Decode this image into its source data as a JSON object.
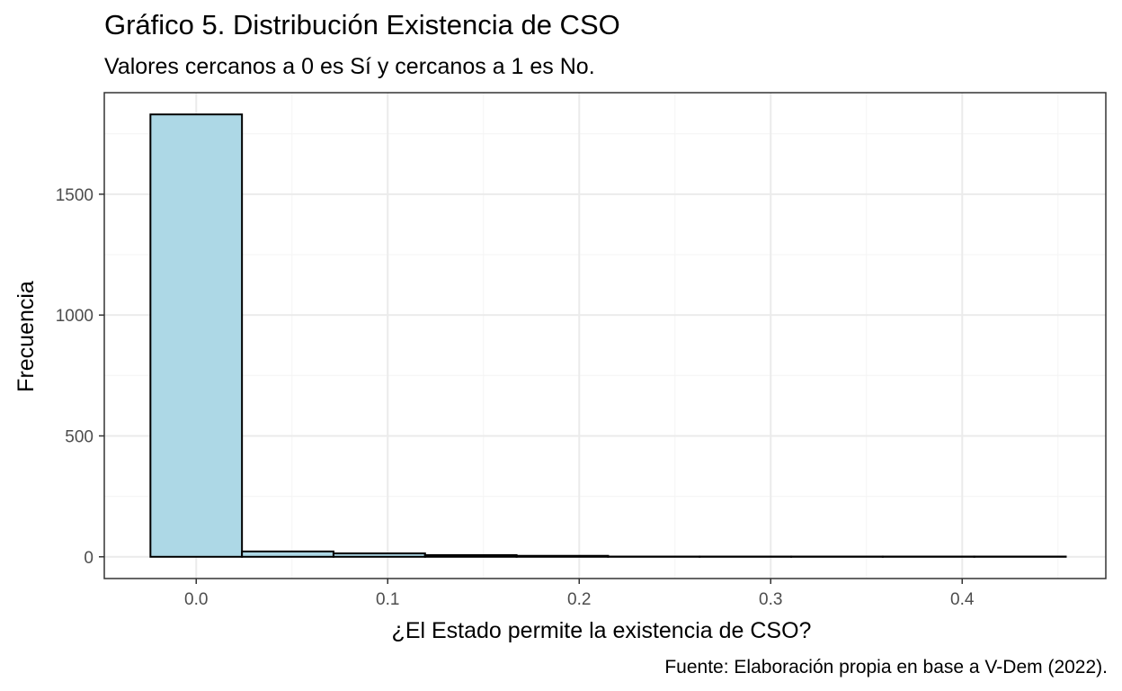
{
  "chart_data": {
    "type": "bar",
    "subtype": "histogram",
    "title": "Gráfico 5. Distribución Existencia de CSO",
    "subtitle": "Valores cercanos a 0 es Sí y cercanos a 1 es No.",
    "xlabel": "¿El Estado permite la existencia de CSO?",
    "ylabel": "Frecuencia",
    "caption": "Fuente: Elaboración propia en base a V-Dem (2022).",
    "xlim": [
      -0.048,
      0.475
    ],
    "ylim": [
      -90,
      1920
    ],
    "x_ticks": [
      0.0,
      0.1,
      0.2,
      0.3,
      0.4
    ],
    "x_tick_labels": [
      "0.0",
      "0.1",
      "0.2",
      "0.3",
      "0.4"
    ],
    "y_ticks": [
      0,
      500,
      1000,
      1500
    ],
    "y_tick_labels": [
      "0",
      "500",
      "1000",
      "1500"
    ],
    "bins": [
      {
        "x0": -0.0239,
        "x1": 0.0239,
        "count": 1830
      },
      {
        "x0": 0.0239,
        "x1": 0.0717,
        "count": 22
      },
      {
        "x0": 0.0717,
        "x1": 0.1195,
        "count": 14
      },
      {
        "x0": 0.1195,
        "x1": 0.1673,
        "count": 7
      },
      {
        "x0": 0.1673,
        "x1": 0.2151,
        "count": 4
      },
      {
        "x0": 0.2151,
        "x1": 0.2629,
        "count": 1
      },
      {
        "x0": 0.2629,
        "x1": 0.3107,
        "count": 1
      },
      {
        "x0": 0.3107,
        "x1": 0.3585,
        "count": 1
      },
      {
        "x0": 0.3585,
        "x1": 0.4063,
        "count": 1
      },
      {
        "x0": 0.4063,
        "x1": 0.4541,
        "count": 1
      }
    ],
    "bar_fill": "#add8e6",
    "bar_stroke": "#000000",
    "grid": true,
    "grid_major_color": "#ebebeb",
    "grid_minor_color": "#f5f5f5",
    "panel_border_color": "#333333"
  }
}
